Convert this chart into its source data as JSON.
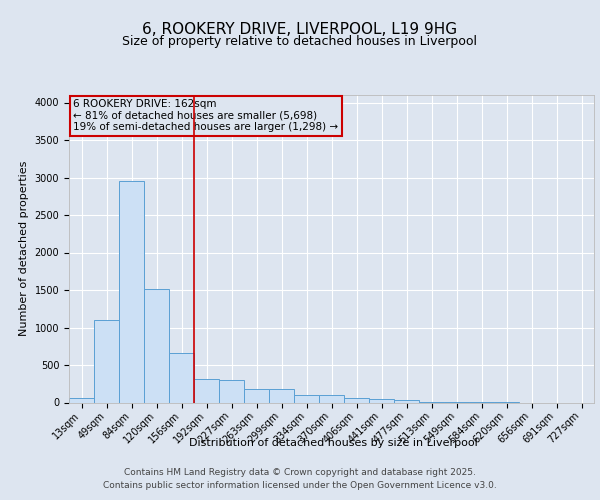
{
  "title_line1": "6, ROOKERY DRIVE, LIVERPOOL, L19 9HG",
  "title_line2": "Size of property relative to detached houses in Liverpool",
  "xlabel": "Distribution of detached houses by size in Liverpool",
  "ylabel": "Number of detached properties",
  "categories": [
    "13sqm",
    "49sqm",
    "84sqm",
    "120sqm",
    "156sqm",
    "192sqm",
    "227sqm",
    "263sqm",
    "299sqm",
    "334sqm",
    "370sqm",
    "406sqm",
    "441sqm",
    "477sqm",
    "513sqm",
    "549sqm",
    "584sqm",
    "620sqm",
    "656sqm",
    "691sqm",
    "727sqm"
  ],
  "values": [
    55,
    1100,
    2950,
    1520,
    660,
    310,
    305,
    185,
    175,
    100,
    95,
    55,
    50,
    30,
    10,
    10,
    5,
    5,
    0,
    0,
    0
  ],
  "bar_color": "#cce0f5",
  "bar_edge_color": "#5a9fd4",
  "vline_x": 4.5,
  "vline_color": "#cc0000",
  "annotation_box_text": "6 ROOKERY DRIVE: 162sqm\n← 81% of detached houses are smaller (5,698)\n19% of semi-detached houses are larger (1,298) →",
  "annotation_box_color": "#cc0000",
  "background_color": "#dde5f0",
  "plot_bg_color": "#dde5f0",
  "ylim": [
    0,
    4100
  ],
  "yticks": [
    0,
    500,
    1000,
    1500,
    2000,
    2500,
    3000,
    3500,
    4000
  ],
  "footer_line1": "Contains HM Land Registry data © Crown copyright and database right 2025.",
  "footer_line2": "Contains public sector information licensed under the Open Government Licence v3.0.",
  "title_fontsize": 11,
  "subtitle_fontsize": 9,
  "axis_label_fontsize": 8,
  "tick_fontsize": 7,
  "footer_fontsize": 6.5,
  "annotation_fontsize": 7.5
}
